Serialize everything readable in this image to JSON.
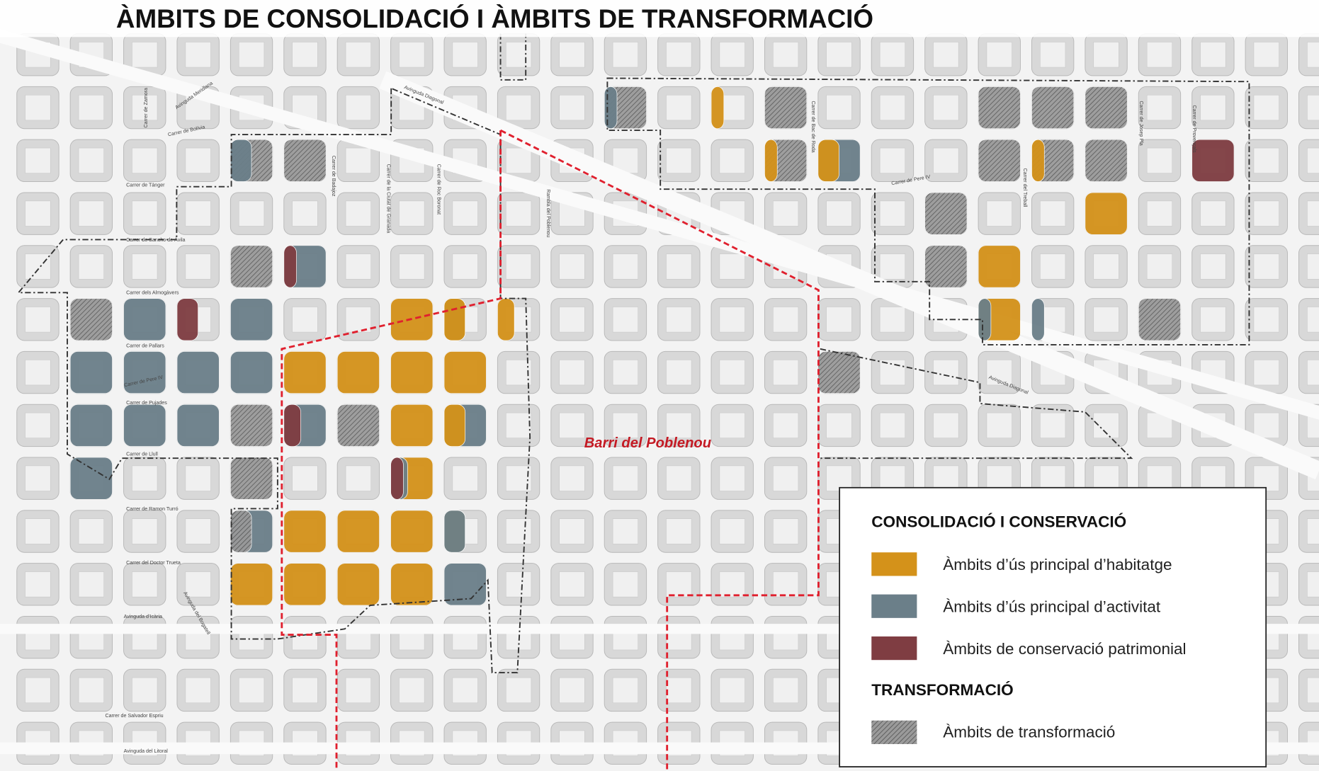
{
  "title": "ÀMBITS DE CONSOLIDACIÓ I ÀMBITS DE TRANSFORMACIÓ",
  "district_label": "Barri del Poblenou",
  "legend": {
    "heading_consolidation": "CONSOLIDACIÓ I CONSERVACIÓ",
    "items": [
      "Àmbits d’ús principal d’habitatge",
      "Àmbits d’ús principal d’activitat",
      "Àmbits de conservació patrimonial"
    ],
    "heading_transformation": "TRANSFORMACIÓ",
    "transformation_item": "Àmbits de transformació"
  },
  "streets": [
    "Avinguda Diagonal",
    "Avinguda Meridiana",
    "Carrer de Bolívia",
    "Carrer de Zamora",
    "Carrer de Tànger",
    "Carrer de Sancho de Àvila",
    "Carrer dels Almogàvers",
    "Carrer de Pallars",
    "Carrer de Pere IV",
    "Carrer de Pujades",
    "Carrer de Llull",
    "Carrer de Ramon Turró",
    "Carrer del Doctor Trueta",
    "Avinguda d’Icària",
    "Carrer de Salvador Espriu",
    "Avinguda del Litoral",
    "Rambla del Poblenou",
    "Carrer de Roc Boronat",
    "Carrer de la Ciutat de Granada",
    "Carrer de Badajoz",
    "Carrer de Bac de Roda",
    "Carrer de Pere IV",
    "Carrer del Treball",
    "Carrer de Josep Pla",
    "Carrer de Provençals",
    "Avinguda Diagonal",
    "Avinguda del Bogatell"
  ]
}
